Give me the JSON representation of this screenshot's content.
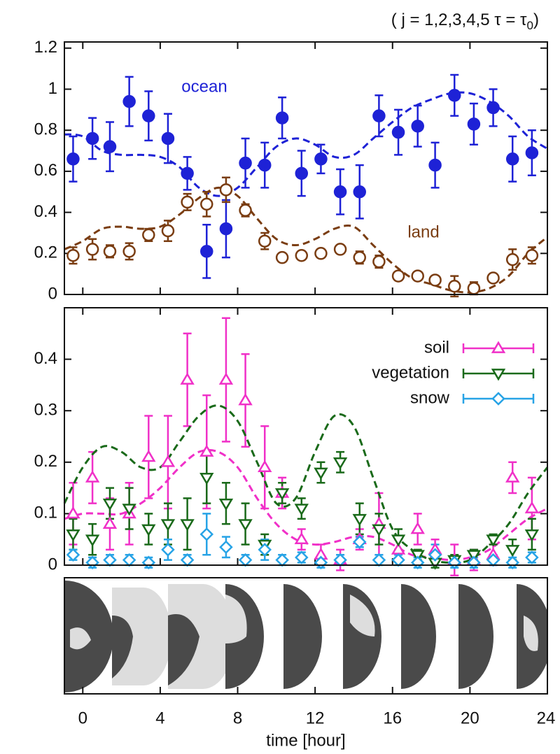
{
  "chart_data": [
    {
      "type": "errorbar",
      "annotation": {
        "text": "( j = 1,2,3,4,5   τ = τ",
        "sub": "0",
        "end": ")"
      },
      "xlim": [
        -0.95,
        24
      ],
      "ylim": [
        0,
        1.23
      ],
      "yticks": [
        0,
        0.2,
        0.4,
        0.6,
        0.8,
        1,
        1.2
      ],
      "legend": "inline",
      "x": [
        -0.5,
        0.5,
        1.4,
        2.4,
        3.4,
        4.4,
        5.4,
        6.4,
        7.4,
        8.4,
        9.4,
        10.3,
        11.3,
        12.3,
        13.3,
        14.3,
        15.3,
        16.3,
        17.3,
        18.2,
        19.2,
        20.2,
        21.2,
        22.2,
        23.2
      ],
      "series": [
        {
          "name": "ocean",
          "color": "#1e22d6",
          "marker": "circle",
          "filled": true,
          "values": [
            0.66,
            0.76,
            0.72,
            0.94,
            0.87,
            0.76,
            0.59,
            0.21,
            0.32,
            0.64,
            0.63,
            0.86,
            0.59,
            0.66,
            0.5,
            0.5,
            0.87,
            0.79,
            0.82,
            0.63,
            0.97,
            0.83,
            0.91,
            0.66,
            0.69
          ],
          "errors": [
            0.11,
            0.1,
            0.12,
            0.12,
            0.12,
            0.12,
            0.08,
            0.13,
            0.14,
            0.12,
            0.11,
            0.1,
            0.11,
            0.07,
            0.11,
            0.13,
            0.1,
            0.11,
            0.1,
            0.11,
            0.1,
            0.1,
            0.09,
            0.11,
            0.11
          ],
          "model": {
            "x": [
              -0.95,
              0,
              1,
              2,
              3,
              4,
              5,
              6,
              7,
              8,
              9,
              10,
              11,
              12,
              13,
              14,
              15,
              16,
              17,
              18,
              19,
              20,
              21,
              22,
              23,
              24
            ],
            "values": [
              0.78,
              0.77,
              0.7,
              0.68,
              0.68,
              0.67,
              0.62,
              0.52,
              0.48,
              0.52,
              0.62,
              0.72,
              0.76,
              0.73,
              0.67,
              0.68,
              0.76,
              0.84,
              0.91,
              0.95,
              0.98,
              0.98,
              0.94,
              0.87,
              0.77,
              0.71
            ]
          }
        },
        {
          "name": "land",
          "color": "#7a3d12",
          "marker": "circle",
          "filled": false,
          "values": [
            0.19,
            0.22,
            0.21,
            0.21,
            0.29,
            0.31,
            0.45,
            0.44,
            0.51,
            0.41,
            0.26,
            0.18,
            0.19,
            0.2,
            0.22,
            0.18,
            0.16,
            0.09,
            0.09,
            0.07,
            0.04,
            0.03,
            0.08,
            0.17,
            0.19
          ],
          "errors": [
            0.04,
            0.05,
            0.03,
            0.04,
            0.03,
            0.05,
            0.04,
            0.06,
            0.06,
            0.03,
            0.04,
            0.02,
            0.02,
            0.02,
            0.02,
            0.03,
            0.03,
            0.02,
            0.02,
            0.02,
            0.05,
            0.03,
            0.02,
            0.05,
            0.04
          ],
          "model": {
            "x": [
              -0.95,
              0,
              1,
              2,
              3,
              4,
              5,
              6,
              7,
              8,
              9,
              10,
              11,
              12,
              13,
              14,
              15,
              16,
              17,
              18,
              19,
              20,
              21,
              22,
              23,
              24
            ],
            "values": [
              0.22,
              0.26,
              0.32,
              0.33,
              0.32,
              0.33,
              0.39,
              0.47,
              0.52,
              0.48,
              0.37,
              0.27,
              0.24,
              0.27,
              0.32,
              0.33,
              0.24,
              0.15,
              0.08,
              0.05,
              0.02,
              0.01,
              0.03,
              0.09,
              0.2,
              0.28
            ]
          }
        }
      ]
    },
    {
      "type": "errorbar",
      "xlabel": "time [hour]",
      "xlim": [
        -0.95,
        24
      ],
      "xticks": [
        0,
        4,
        8,
        12,
        16,
        20,
        24
      ],
      "ylim": [
        0,
        0.5
      ],
      "yticks": [
        0,
        0.1,
        0.2,
        0.3,
        0.4
      ],
      "legend": "upper right",
      "x": [
        -0.5,
        0.5,
        1.4,
        2.4,
        3.4,
        4.4,
        5.4,
        6.4,
        7.4,
        8.4,
        9.4,
        10.3,
        11.3,
        12.3,
        13.3,
        14.3,
        15.3,
        16.3,
        17.3,
        18.2,
        19.2,
        20.2,
        21.2,
        22.2,
        23.2
      ],
      "series": [
        {
          "name": "soil",
          "color": "#f030c8",
          "marker": "triangle-up",
          "filled": false,
          "values": [
            0.1,
            0.17,
            0.08,
            0.1,
            0.21,
            0.2,
            0.36,
            0.22,
            0.36,
            0.32,
            0.19,
            0.14,
            0.05,
            0.02,
            0.01,
            0.05,
            0.08,
            0.03,
            0.07,
            0.03,
            0.01,
            0.01,
            0.02,
            0.17,
            0.11
          ],
          "errors": [
            0.06,
            0.05,
            0.05,
            0.06,
            0.08,
            0.09,
            0.09,
            0.11,
            0.12,
            0.09,
            0.08,
            0.03,
            0.02,
            0.02,
            0.02,
            0.02,
            0.06,
            0.02,
            0.03,
            0.02,
            0.03,
            0.02,
            0.02,
            0.03,
            0.06
          ],
          "model": {
            "x": [
              -0.95,
              0,
              1,
              2,
              3,
              4,
              5,
              6,
              7,
              8,
              9,
              10,
              11,
              12,
              13,
              14,
              15,
              16,
              17,
              18,
              19,
              20,
              21,
              22,
              23,
              24
            ],
            "values": [
              0.09,
              0.1,
              0.1,
              0.1,
              0.12,
              0.15,
              0.19,
              0.22,
              0.22,
              0.19,
              0.13,
              0.08,
              0.05,
              0.04,
              0.045,
              0.055,
              0.055,
              0.04,
              0.02,
              0.015,
              0.01,
              0.015,
              0.03,
              0.06,
              0.09,
              0.11
            ]
          }
        },
        {
          "name": "vegetation",
          "color": "#1a6a1a",
          "marker": "triangle-down",
          "filled": false,
          "values": [
            0.06,
            0.05,
            0.12,
            0.11,
            0.07,
            0.08,
            0.08,
            0.17,
            0.12,
            0.08,
            0.04,
            0.14,
            0.11,
            0.18,
            0.2,
            0.09,
            0.07,
            0.05,
            0.02,
            0.005,
            0.01,
            0.02,
            0.05,
            0.03,
            0.06
          ],
          "errors": [
            0.03,
            0.03,
            0.03,
            0.04,
            0.03,
            0.04,
            0.05,
            0.05,
            0.04,
            0.04,
            0.02,
            0.02,
            0.02,
            0.02,
            0.02,
            0.03,
            0.03,
            0.02,
            0.01,
            0.01,
            0.01,
            0.01,
            0.01,
            0.02,
            0.03
          ],
          "model": {
            "x": [
              -0.95,
              0,
              1,
              2,
              3,
              4,
              5,
              6,
              7,
              8,
              9,
              10,
              11,
              12,
              13,
              14,
              15,
              16,
              17,
              18,
              19,
              20,
              21,
              22,
              23,
              24
            ],
            "values": [
              0.12,
              0.19,
              0.23,
              0.22,
              0.19,
              0.19,
              0.24,
              0.29,
              0.31,
              0.28,
              0.2,
              0.12,
              0.13,
              0.22,
              0.29,
              0.27,
              0.17,
              0.07,
              0.03,
              0.01,
              0.005,
              0.01,
              0.04,
              0.08,
              0.14,
              0.19
            ]
          }
        },
        {
          "name": "snow",
          "color": "#27a3e6",
          "marker": "diamond",
          "filled": false,
          "values": [
            0.02,
            0.005,
            0.01,
            0.01,
            0.005,
            0.03,
            0.01,
            0.06,
            0.035,
            0.01,
            0.03,
            0.01,
            0.015,
            0.005,
            0.01,
            0.045,
            0.01,
            0.01,
            0.005,
            0.02,
            0.005,
            0.005,
            0.01,
            0.005,
            0.015
          ],
          "errors": [
            0.01,
            0.01,
            0.01,
            0.01,
            0.01,
            0.02,
            0.01,
            0.04,
            0.02,
            0.01,
            0.02,
            0.01,
            0.01,
            0.01,
            0.01,
            0.01,
            0.01,
            0.01,
            0.01,
            0.02,
            0.01,
            0.01,
            0.01,
            0.01,
            0.01
          ]
        }
      ]
    }
  ]
}
